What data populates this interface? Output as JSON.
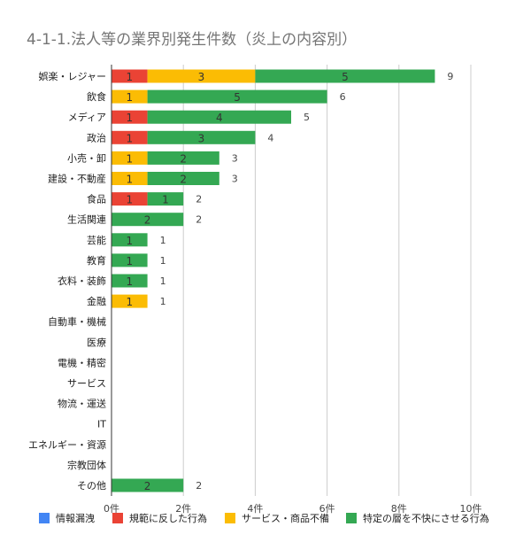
{
  "chart_data": {
    "type": "bar",
    "orientation": "horizontal",
    "stacked": true,
    "title": "4-1-1.法人等の業界別発生件数（炎上の内容別）",
    "xlabel": "",
    "ylabel": "",
    "xlim": [
      0,
      10
    ],
    "x_ticks": [
      "0件",
      "2件",
      "4件",
      "6件",
      "8件",
      "10件"
    ],
    "x_tick_values": [
      0,
      2,
      4,
      6,
      8,
      10
    ],
    "grid": true,
    "legend_position": "bottom",
    "categories": [
      "娯楽・レジャー",
      "飲食",
      "メディア",
      "政治",
      "小売・卸",
      "建設・不動産",
      "食品",
      "生活関連",
      "芸能",
      "教育",
      "衣料・装飾",
      "金融",
      "自動車・機械",
      "医療",
      "電機・精密",
      "サービス",
      "物流・運送",
      "IT",
      "エネルギー・資源",
      "宗教団体",
      "その他"
    ],
    "series": [
      {
        "name": "情報漏洩",
        "color": "#4285f4",
        "values": [
          0,
          0,
          0,
          0,
          0,
          0,
          0,
          0,
          0,
          0,
          0,
          0,
          0,
          0,
          0,
          0,
          0,
          0,
          0,
          0,
          0
        ]
      },
      {
        "name": "規範に反した行為",
        "color": "#ea4335",
        "values": [
          1,
          0,
          1,
          1,
          0,
          0,
          1,
          0,
          0,
          0,
          0,
          0,
          0,
          0,
          0,
          0,
          0,
          0,
          0,
          0,
          0
        ]
      },
      {
        "name": "サービス・商品不備",
        "color": "#fbbc04",
        "values": [
          3,
          1,
          0,
          0,
          1,
          1,
          0,
          0,
          0,
          0,
          0,
          1,
          0,
          0,
          0,
          0,
          0,
          0,
          0,
          0,
          0
        ]
      },
      {
        "name": "特定の層を不快にさせる行為",
        "color": "#34a853",
        "values": [
          5,
          5,
          4,
          3,
          2,
          2,
          1,
          2,
          1,
          1,
          1,
          0,
          0,
          0,
          0,
          0,
          0,
          0,
          0,
          0,
          2
        ]
      }
    ],
    "totals": [
      9,
      6,
      5,
      4,
      3,
      3,
      2,
      2,
      1,
      1,
      1,
      1,
      0,
      0,
      0,
      0,
      0,
      0,
      0,
      0,
      2
    ]
  }
}
